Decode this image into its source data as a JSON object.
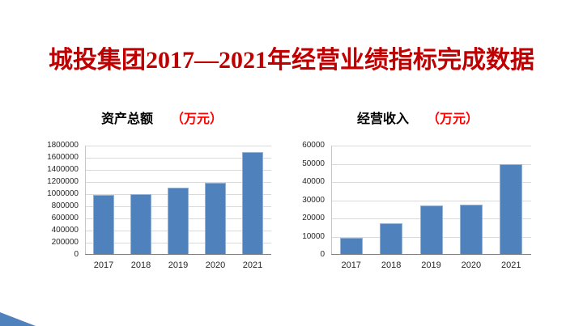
{
  "title": {
    "text": "城投集团2017—2021年经营业绩指标完成数据"
  },
  "colors": {
    "background": "#ffffff",
    "title_red": "#c00000",
    "unit_red": "#ff0000",
    "chart_title_text": "#000000",
    "bar_fill": "#4f81bd",
    "bar_border": "#95b3d7",
    "gridline": "#d9d9d9",
    "axis_line": "#808080",
    "axis_line_light": "#c6c6c6",
    "tick_text": "#262626"
  },
  "chart_data": [
    {
      "type": "bar",
      "title": "资产总额",
      "unit": "（万元）",
      "categories": [
        "2017",
        "2018",
        "2019",
        "2020",
        "2021"
      ],
      "values": [
        990000,
        1000000,
        1100000,
        1190000,
        1690000
      ],
      "xlabel": "",
      "ylabel": "",
      "ylim": [
        0,
        1800000
      ],
      "ytick_step": 200000,
      "grid": true,
      "legend": "none"
    },
    {
      "type": "bar",
      "title": "经营收入",
      "unit": "（万元）",
      "categories": [
        "2017",
        "2018",
        "2019",
        "2020",
        "2021"
      ],
      "values": [
        9500,
        17500,
        27000,
        27500,
        49700
      ],
      "xlabel": "",
      "ylabel": "",
      "ylim": [
        0,
        60000
      ],
      "ytick_step": 10000,
      "grid": true,
      "legend": "none"
    }
  ],
  "decor": {
    "corner_triangle": true
  }
}
